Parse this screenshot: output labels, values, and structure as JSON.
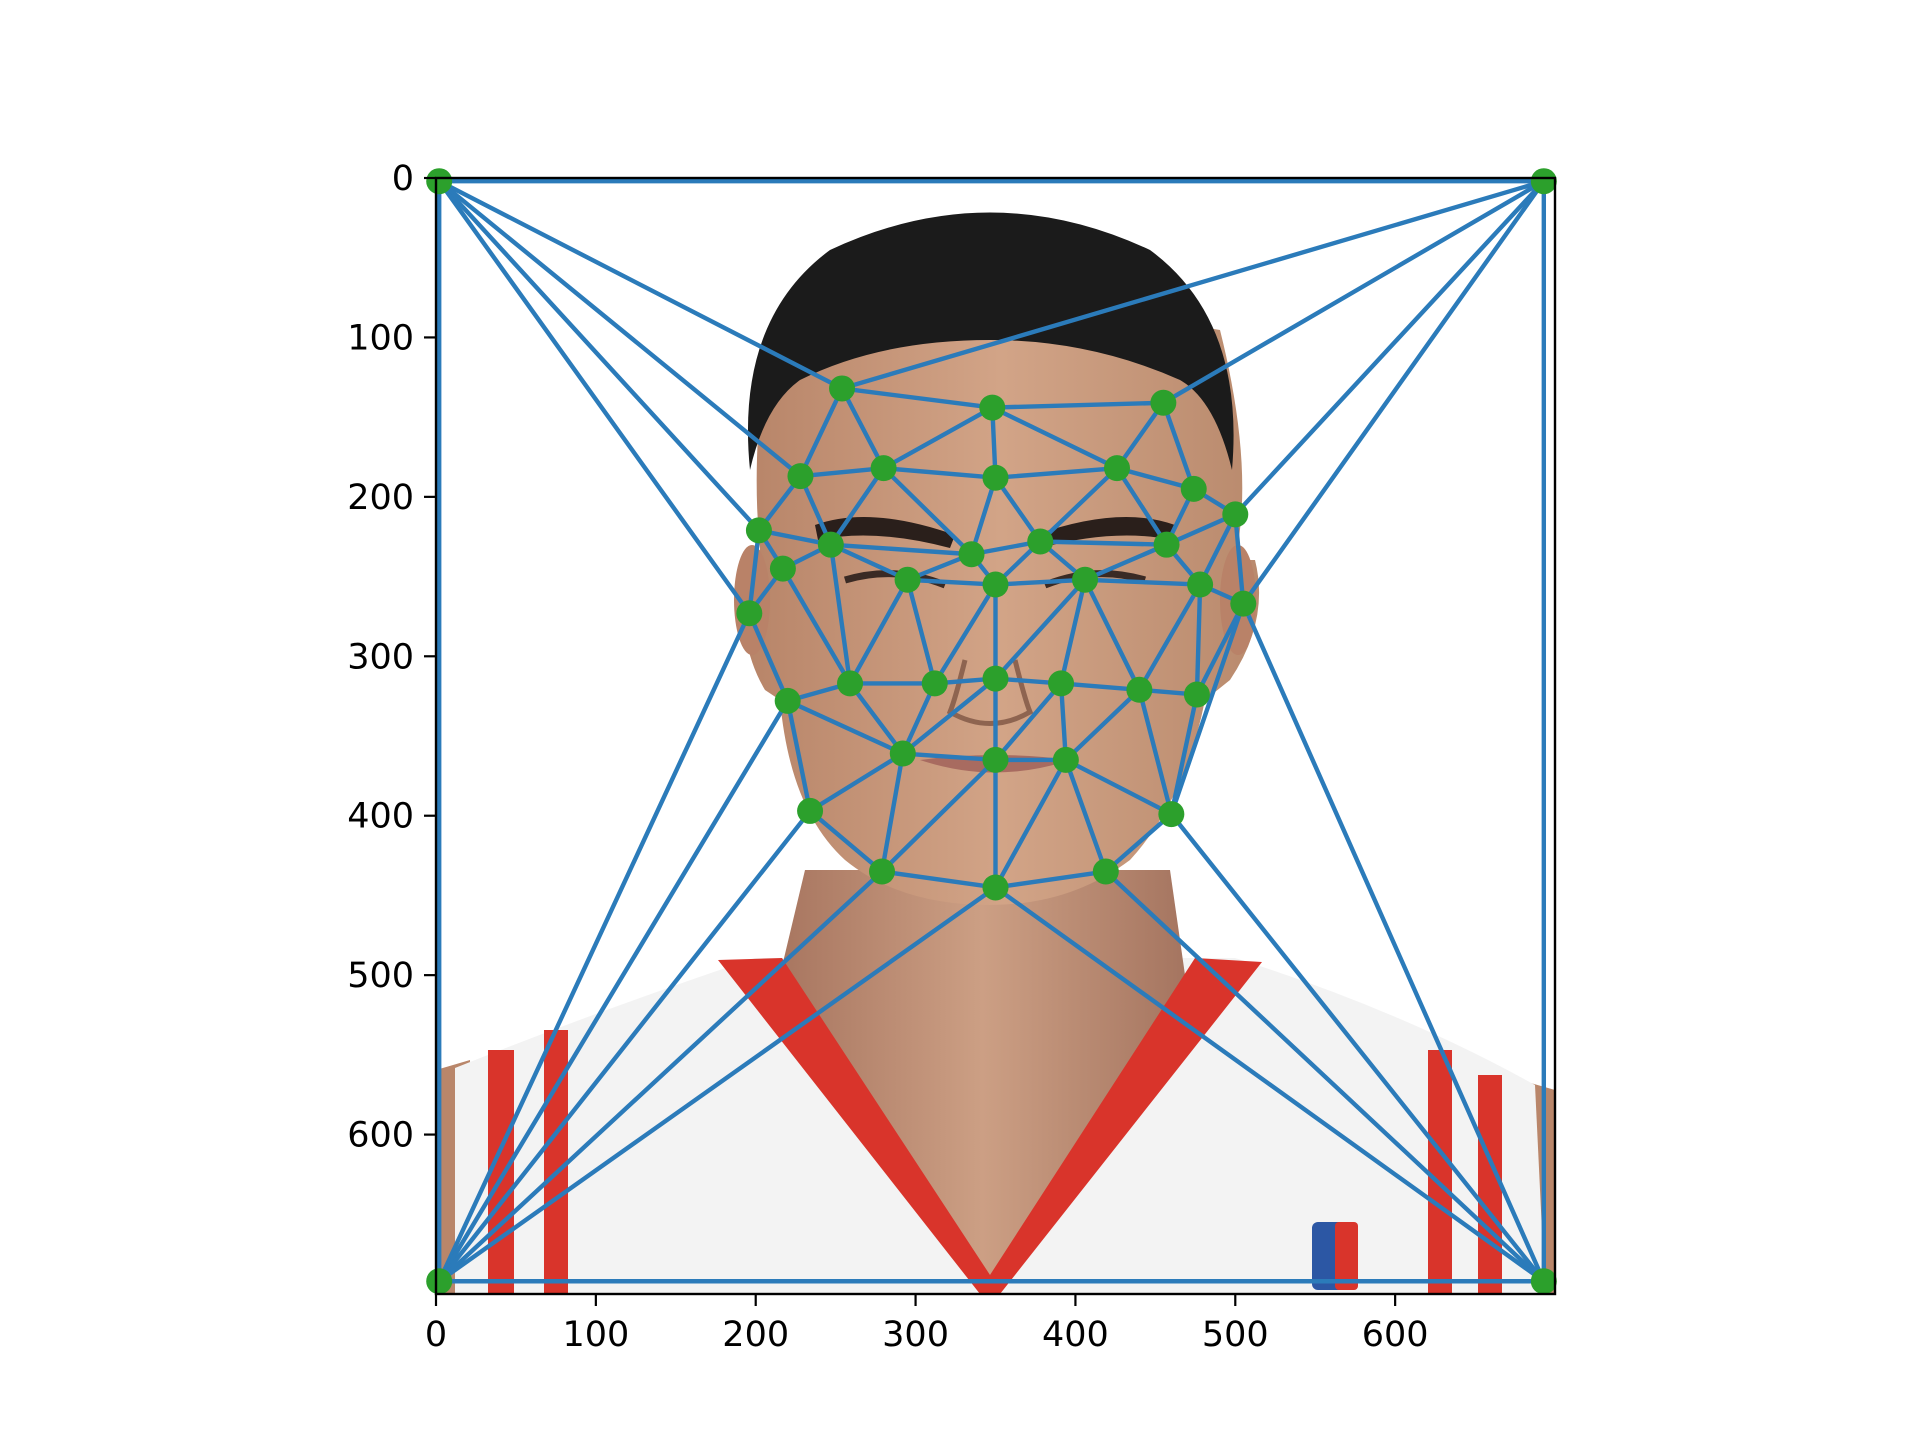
{
  "chart_data": {
    "type": "scatter",
    "title": "",
    "xlabel": "",
    "ylabel": "",
    "xlim": [
      0,
      700
    ],
    "ylim": [
      700,
      0
    ],
    "y_axis_inverted": true,
    "grid": false,
    "legend": "none",
    "x_ticks": [
      0,
      100,
      200,
      300,
      400,
      500,
      600
    ],
    "y_ticks": [
      0,
      100,
      200,
      300,
      400,
      500,
      600
    ],
    "background": "portrait photograph of a man in a white and red basketball jersey",
    "colors": {
      "mesh": "#2b7bba",
      "points": "#2ca02c",
      "jersey_red": "#d9342b",
      "hair": "#1b1b1b",
      "skin": "#c99a7c"
    },
    "points": [
      [
        2,
        2
      ],
      [
        693,
        2
      ],
      [
        2,
        692
      ],
      [
        693,
        692
      ],
      [
        254,
        132
      ],
      [
        348,
        144
      ],
      [
        455,
        141
      ],
      [
        228,
        187
      ],
      [
        280,
        182
      ],
      [
        350,
        188
      ],
      [
        426,
        182
      ],
      [
        474,
        195
      ],
      [
        500,
        211
      ],
      [
        202,
        221
      ],
      [
        247,
        230
      ],
      [
        335,
        236
      ],
      [
        378,
        228
      ],
      [
        457,
        230
      ],
      [
        217,
        245
      ],
      [
        295,
        252
      ],
      [
        350,
        255
      ],
      [
        406,
        252
      ],
      [
        478,
        255
      ],
      [
        196,
        273
      ],
      [
        505,
        267
      ],
      [
        259,
        317
      ],
      [
        312,
        317
      ],
      [
        350,
        314
      ],
      [
        391,
        317
      ],
      [
        440,
        321
      ],
      [
        476,
        324
      ],
      [
        220,
        328
      ],
      [
        292,
        361
      ],
      [
        350,
        365
      ],
      [
        394,
        365
      ],
      [
        234,
        397
      ],
      [
        460,
        399
      ],
      [
        279,
        435
      ],
      [
        350,
        445
      ],
      [
        419,
        435
      ]
    ],
    "edges": [
      [
        0,
        1
      ],
      [
        0,
        2
      ],
      [
        1,
        3
      ],
      [
        2,
        3
      ],
      [
        0,
        4
      ],
      [
        0,
        7
      ],
      [
        0,
        13
      ],
      [
        0,
        23
      ],
      [
        1,
        4
      ],
      [
        1,
        6
      ],
      [
        1,
        12
      ],
      [
        1,
        24
      ],
      [
        2,
        23
      ],
      [
        2,
        31
      ],
      [
        2,
        35
      ],
      [
        2,
        37
      ],
      [
        2,
        38
      ],
      [
        3,
        24
      ],
      [
        3,
        36
      ],
      [
        3,
        39
      ],
      [
        3,
        38
      ],
      [
        4,
        5
      ],
      [
        4,
        7
      ],
      [
        4,
        8
      ],
      [
        5,
        6
      ],
      [
        5,
        8
      ],
      [
        5,
        9
      ],
      [
        5,
        10
      ],
      [
        6,
        10
      ],
      [
        6,
        11
      ],
      [
        7,
        8
      ],
      [
        7,
        13
      ],
      [
        7,
        14
      ],
      [
        8,
        9
      ],
      [
        8,
        14
      ],
      [
        8,
        15
      ],
      [
        9,
        10
      ],
      [
        9,
        15
      ],
      [
        9,
        16
      ],
      [
        10,
        16
      ],
      [
        10,
        17
      ],
      [
        10,
        11
      ],
      [
        11,
        12
      ],
      [
        11,
        17
      ],
      [
        12,
        17
      ],
      [
        12,
        22
      ],
      [
        12,
        24
      ],
      [
        13,
        14
      ],
      [
        13,
        18
      ],
      [
        13,
        23
      ],
      [
        14,
        15
      ],
      [
        14,
        18
      ],
      [
        14,
        19
      ],
      [
        14,
        25
      ],
      [
        15,
        16
      ],
      [
        15,
        19
      ],
      [
        15,
        20
      ],
      [
        16,
        20
      ],
      [
        16,
        21
      ],
      [
        16,
        17
      ],
      [
        17,
        21
      ],
      [
        17,
        22
      ],
      [
        18,
        23
      ],
      [
        18,
        25
      ],
      [
        19,
        20
      ],
      [
        19,
        25
      ],
      [
        19,
        26
      ],
      [
        20,
        26
      ],
      [
        20,
        27
      ],
      [
        20,
        21
      ],
      [
        21,
        27
      ],
      [
        21,
        28
      ],
      [
        21,
        29
      ],
      [
        21,
        22
      ],
      [
        22,
        24
      ],
      [
        22,
        29
      ],
      [
        22,
        30
      ],
      [
        24,
        30
      ],
      [
        24,
        36
      ],
      [
        23,
        31
      ],
      [
        25,
        31
      ],
      [
        25,
        26
      ],
      [
        25,
        32
      ],
      [
        26,
        27
      ],
      [
        26,
        32
      ],
      [
        27,
        28
      ],
      [
        27,
        32
      ],
      [
        27,
        33
      ],
      [
        28,
        33
      ],
      [
        28,
        34
      ],
      [
        28,
        29
      ],
      [
        29,
        34
      ],
      [
        29,
        30
      ],
      [
        29,
        36
      ],
      [
        30,
        36
      ],
      [
        31,
        32
      ],
      [
        31,
        35
      ],
      [
        32,
        35
      ],
      [
        32,
        37
      ],
      [
        32,
        33
      ],
      [
        33,
        37
      ],
      [
        33,
        38
      ],
      [
        33,
        34
      ],
      [
        34,
        38
      ],
      [
        34,
        39
      ],
      [
        34,
        36
      ],
      [
        36,
        39
      ],
      [
        35,
        37
      ],
      [
        37,
        38
      ],
      [
        38,
        39
      ]
    ]
  }
}
